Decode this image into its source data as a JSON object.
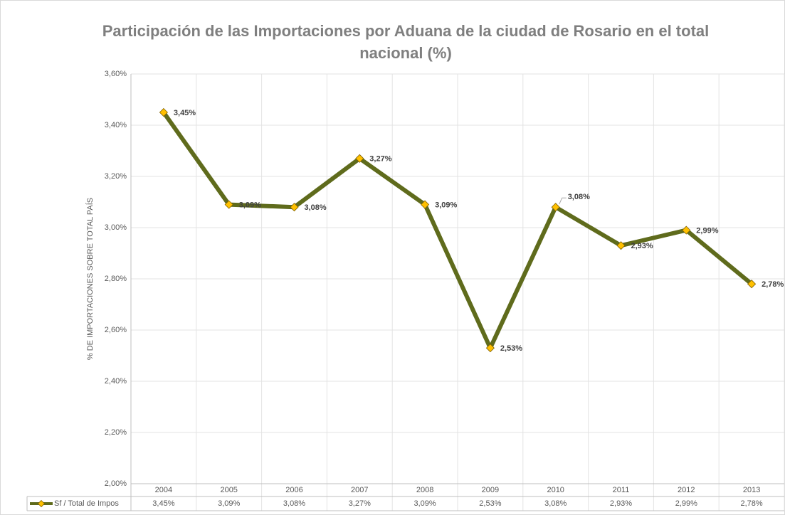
{
  "chart_data": {
    "type": "line",
    "title": "Participación de las Importaciones por Aduana de la ciudad de Rosario en el total nacional (%)",
    "y_label": "% DE IMPORTACIONES SOBRE TOTAL PAÍS",
    "categories": [
      "2004",
      "2005",
      "2006",
      "2007",
      "2008",
      "2009",
      "2010",
      "2011",
      "2012",
      "2013"
    ],
    "series": [
      {
        "name": "Sf / Total de Impos",
        "color": "#5f6b1c",
        "marker_color": "#ffc000",
        "values": [
          3.45,
          3.09,
          3.08,
          3.27,
          3.09,
          2.53,
          3.08,
          2.93,
          2.99,
          2.78
        ],
        "value_labels": [
          "3,45%",
          "3,09%",
          "3,08%",
          "3,27%",
          "3,09%",
          "2,53%",
          "3,08%",
          "2,93%",
          "2,99%",
          "2,78%"
        ]
      }
    ],
    "ylim": [
      2.0,
      3.6
    ],
    "yticks": [
      {
        "value": 2.0,
        "label": "2,00%"
      },
      {
        "value": 2.2,
        "label": "2,20%"
      },
      {
        "value": 2.4,
        "label": "2,40%"
      },
      {
        "value": 2.6,
        "label": "2,60%"
      },
      {
        "value": 2.8,
        "label": "2,80%"
      },
      {
        "value": 3.0,
        "label": "3,00%"
      },
      {
        "value": 3.2,
        "label": "3,20%"
      },
      {
        "value": 3.4,
        "label": "3,40%"
      },
      {
        "value": 3.6,
        "label": "3,60%"
      }
    ],
    "grid": true,
    "data_table": true
  }
}
